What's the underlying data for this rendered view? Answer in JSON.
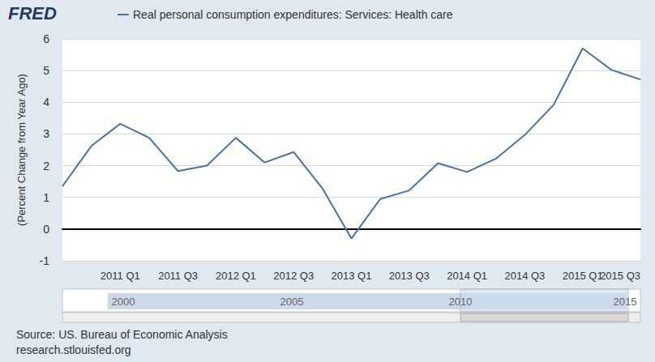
{
  "chart_data": {
    "type": "line",
    "ylabel": "(Percent Change from Year Ago)",
    "categories": [
      null,
      null,
      "2011 Q1",
      null,
      "2011 Q3",
      null,
      "2012 Q1",
      null,
      "2012 Q3",
      null,
      "2013 Q1",
      null,
      "2013 Q3",
      null,
      "2014 Q1",
      null,
      "2014 Q3",
      null,
      "2015 Q1",
      null,
      "2015 Q3"
    ],
    "series": [
      {
        "name": "Real personal consumption expenditures: Services: Health care",
        "color": "#4572a7",
        "values": [
          1.35,
          2.62,
          3.32,
          2.88,
          1.83,
          2.0,
          2.88,
          2.1,
          2.43,
          1.28,
          -0.3,
          0.95,
          1.22,
          2.08,
          1.8,
          2.22,
          2.97,
          3.92,
          5.7,
          5.02,
          4.72
        ]
      }
    ],
    "ylim": [
      -1,
      6
    ],
    "yticks": [
      -1,
      0,
      1,
      2,
      3,
      4,
      5,
      6
    ],
    "grid": true,
    "legend": "upper left",
    "annotations": [
      "FRED",
      "Source: US. Bureau of Economic Analysis",
      "research.stlouisfed.org",
      "2000",
      "2005",
      "2010",
      "2015"
    ]
  }
}
